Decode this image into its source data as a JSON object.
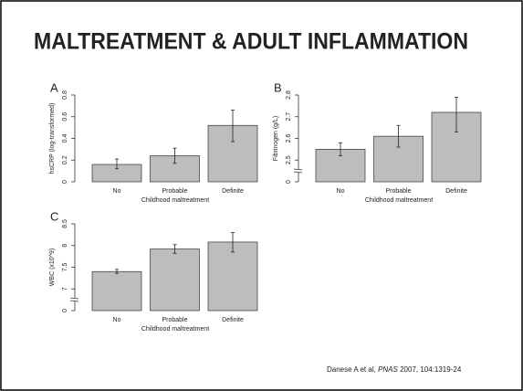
{
  "title": "MALTREATMENT & ADULT INFLAMMATION",
  "citation": {
    "author": "Danese A et al,",
    "journal": "PNAS",
    "details": "2007, 104:1319-24"
  },
  "chart_data": [
    {
      "type": "bar",
      "panel": "A",
      "ylabel": "hsCRP (log-transformed)",
      "xlabel": "Childhood maltreatment",
      "categories": [
        "No",
        "Probable",
        "Definite"
      ],
      "values": [
        0.16,
        0.24,
        0.52
      ],
      "err_low": [
        0.12,
        0.17,
        0.37
      ],
      "err_high": [
        0.21,
        0.31,
        0.66
      ],
      "color": "#bdbdbd",
      "ylim": [
        0,
        0.8
      ],
      "yticks": [
        0,
        0.2,
        0.4,
        0.6,
        0.8
      ]
    },
    {
      "type": "bar",
      "panel": "B",
      "ylabel": "Fibrinogen (g/L)",
      "xlabel": "Childhood maltreatment",
      "categories": [
        "No",
        "Probable",
        "Definite"
      ],
      "values": [
        2.55,
        2.61,
        2.72
      ],
      "err_low": [
        2.52,
        2.56,
        2.63
      ],
      "err_high": [
        2.58,
        2.66,
        2.79
      ],
      "color": "#bdbdbd",
      "ylim": [
        2.4,
        2.8
      ],
      "yticks": [
        0,
        2.5,
        2.6,
        2.7,
        2.8
      ],
      "axis_break": true
    },
    {
      "type": "bar",
      "panel": "C",
      "ylabel": "WBC (x10^9)",
      "xlabel": "Childhood maltreatment",
      "categories": [
        "No",
        "Probable",
        "Definite"
      ],
      "values": [
        7.4,
        7.92,
        8.08
      ],
      "err_low": [
        7.36,
        7.82,
        7.85
      ],
      "err_high": [
        7.45,
        8.02,
        8.3
      ],
      "color": "#bdbdbd",
      "ylim": [
        6.5,
        8.5
      ],
      "yticks": [
        0,
        7,
        7.5,
        8,
        8.5
      ],
      "axis_break": true
    }
  ]
}
